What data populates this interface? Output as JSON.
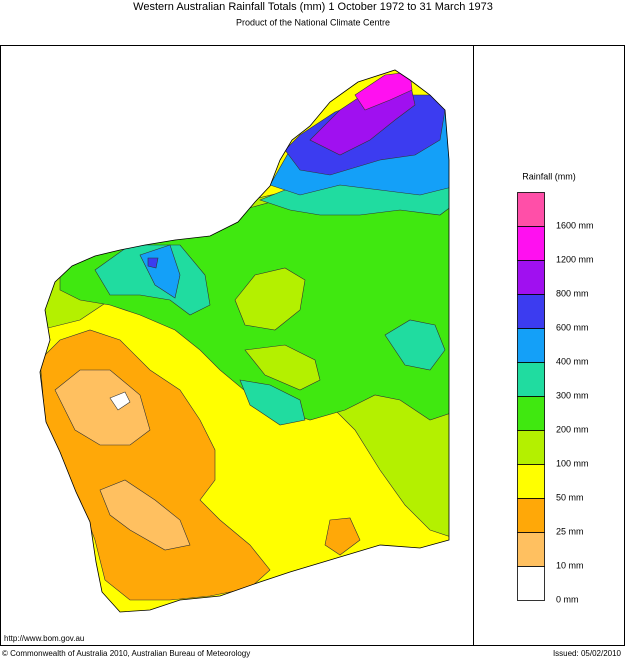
{
  "title": "Western Australian Rainfall Totals (mm) 1 October 1972 to 31 March 1973",
  "subtitle": "Product of the National Climate Centre",
  "legend": {
    "title": "Rainfall (mm)",
    "items": [
      {
        "label": "1600 mm",
        "color": "#ff4fa8"
      },
      {
        "label": "1200 mm",
        "color": "#ff10f0"
      },
      {
        "label": "800 mm",
        "color": "#a010f0"
      },
      {
        "label": "600 mm",
        "color": "#3c3cf0"
      },
      {
        "label": "400 mm",
        "color": "#14a0f8"
      },
      {
        "label": "300 mm",
        "color": "#20dca0"
      },
      {
        "label": "200 mm",
        "color": "#40e810"
      },
      {
        "label": "100 mm",
        "color": "#b4f000"
      },
      {
        "label": "50 mm",
        "color": "#ffff00"
      },
      {
        "label": "25 mm",
        "color": "#ffa808"
      },
      {
        "label": "10 mm",
        "color": "#ffc060"
      },
      {
        "label": "0 mm",
        "color": "#ffffff"
      }
    ]
  },
  "footer": {
    "url": "http://www.bom.gov.au",
    "copyright": "© Commonwealth of Australia 2010, Australian Bureau of Meteorology",
    "issued": "Issued: 05/02/2010"
  }
}
